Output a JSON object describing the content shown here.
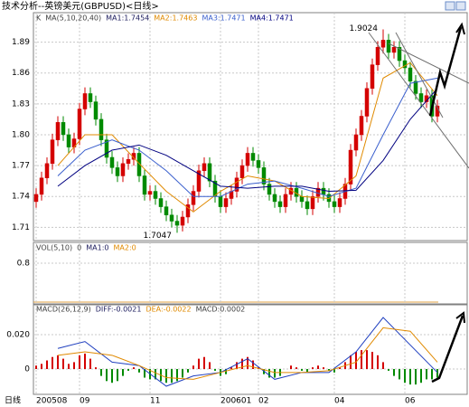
{
  "chart_data": {
    "type": "candlestick",
    "title": "技术分析--英镑美元(GBPUSD)<日线>",
    "period_label": "日线",
    "up_color": "#d40000",
    "down_color": "#008a00",
    "grid": true,
    "ylim": [
      1.698,
      1.916
    ],
    "yticks": [
      1.89,
      1.86,
      1.83,
      {
        "value": 1.8,
        "label": "1.80"
      },
      1.77,
      1.74,
      1.71
    ],
    "price_legend": [
      {
        "text": "K",
        "color": "#404040"
      },
      {
        "text": "MA(5,10,20,40)",
        "color": "#404040"
      },
      {
        "text": "MA1:1.7454",
        "color": "#202060"
      },
      {
        "text": "MA2:1.7463",
        "color": "#e08a00"
      },
      {
        "text": "MA3:1.7471",
        "color": "#3a5fcd"
      },
      {
        "text": "MA4:1.7471",
        "color": "#000080"
      }
    ],
    "candles": {
      "open": [
        1.735,
        1.742,
        1.758,
        1.772,
        1.795,
        1.812,
        1.8,
        1.788,
        1.796,
        1.825,
        1.84,
        1.832,
        1.815,
        1.795,
        1.778,
        1.768,
        1.76,
        1.772,
        1.776,
        1.782,
        1.76,
        1.742,
        1.745,
        1.738,
        1.73,
        1.722,
        1.716,
        1.712,
        1.72,
        1.732,
        1.745,
        1.765,
        1.772,
        1.755,
        1.74,
        1.73,
        1.738,
        1.745,
        1.758,
        1.77,
        1.782,
        1.775,
        1.768,
        1.752,
        1.742,
        1.735,
        1.73,
        1.742,
        1.748,
        1.74,
        1.735,
        1.728,
        1.74,
        1.748,
        1.742,
        1.735,
        1.73,
        1.738,
        1.752,
        1.785,
        1.8,
        1.818,
        1.845,
        1.868,
        1.885,
        1.892,
        1.88,
        1.885,
        1.872,
        1.865,
        1.852,
        1.84,
        1.832,
        1.838,
        1.818
      ],
      "high": [
        1.748,
        1.764,
        1.778,
        1.801,
        1.818,
        1.818,
        1.806,
        1.802,
        1.831,
        1.846,
        1.846,
        1.838,
        1.821,
        1.801,
        1.784,
        1.774,
        1.778,
        1.782,
        1.788,
        1.788,
        1.766,
        1.751,
        1.751,
        1.744,
        1.736,
        1.728,
        1.722,
        1.726,
        1.738,
        1.751,
        1.771,
        1.778,
        1.778,
        1.761,
        1.746,
        1.744,
        1.751,
        1.764,
        1.776,
        1.788,
        1.788,
        1.781,
        1.774,
        1.758,
        1.748,
        1.741,
        1.748,
        1.754,
        1.754,
        1.746,
        1.741,
        1.746,
        1.754,
        1.754,
        1.748,
        1.741,
        1.744,
        1.758,
        1.791,
        1.806,
        1.824,
        1.851,
        1.874,
        1.891,
        1.9024,
        1.898,
        1.891,
        1.891,
        1.878,
        1.871,
        1.858,
        1.846,
        1.844,
        1.844,
        1.834
      ],
      "low": [
        1.729,
        1.736,
        1.752,
        1.766,
        1.789,
        1.794,
        1.782,
        1.782,
        1.79,
        1.819,
        1.826,
        1.809,
        1.789,
        1.772,
        1.762,
        1.754,
        1.754,
        1.766,
        1.77,
        1.754,
        1.736,
        1.736,
        1.732,
        1.724,
        1.716,
        1.71,
        1.7047,
        1.706,
        1.714,
        1.726,
        1.739,
        1.759,
        1.749,
        1.734,
        1.724,
        1.724,
        1.732,
        1.739,
        1.752,
        1.764,
        1.769,
        1.762,
        1.746,
        1.736,
        1.729,
        1.724,
        1.724,
        1.736,
        1.734,
        1.729,
        1.722,
        1.722,
        1.734,
        1.736,
        1.729,
        1.724,
        1.724,
        1.732,
        1.746,
        1.779,
        1.794,
        1.812,
        1.839,
        1.862,
        1.879,
        1.874,
        1.874,
        1.866,
        1.859,
        1.846,
        1.834,
        1.826,
        1.826,
        1.812,
        1.812
      ],
      "close": [
        1.742,
        1.758,
        1.772,
        1.795,
        1.812,
        1.8,
        1.788,
        1.796,
        1.825,
        1.84,
        1.832,
        1.815,
        1.795,
        1.778,
        1.768,
        1.76,
        1.772,
        1.776,
        1.782,
        1.76,
        1.742,
        1.745,
        1.738,
        1.73,
        1.722,
        1.716,
        1.712,
        1.72,
        1.732,
        1.745,
        1.765,
        1.772,
        1.755,
        1.74,
        1.73,
        1.738,
        1.745,
        1.758,
        1.77,
        1.782,
        1.775,
        1.768,
        1.752,
        1.742,
        1.735,
        1.73,
        1.742,
        1.748,
        1.74,
        1.735,
        1.728,
        1.74,
        1.748,
        1.742,
        1.735,
        1.73,
        1.738,
        1.752,
        1.785,
        1.8,
        1.818,
        1.845,
        1.868,
        1.885,
        1.892,
        1.88,
        1.885,
        1.872,
        1.865,
        1.852,
        1.84,
        1.832,
        1.838,
        1.818,
        1.828
      ]
    },
    "ma": {
      "x": [
        4,
        9,
        14,
        19,
        24,
        29,
        34,
        39,
        44,
        49,
        54,
        59,
        64,
        69,
        74
      ],
      "series": [
        {
          "color": "#e08a00",
          "values": [
            1.77,
            1.8,
            1.8,
            1.772,
            1.745,
            1.725,
            1.745,
            1.76,
            1.755,
            1.74,
            1.738,
            1.76,
            1.855,
            1.87,
            1.838
          ]
        },
        {
          "color": "#3a5fcd",
          "values": [
            1.76,
            1.785,
            1.795,
            1.785,
            1.765,
            1.74,
            1.74,
            1.752,
            1.755,
            1.748,
            1.74,
            1.748,
            1.8,
            1.85,
            1.855
          ]
        },
        {
          "color": "#000080",
          "values": [
            1.75,
            1.77,
            1.785,
            1.79,
            1.78,
            1.765,
            1.75,
            1.748,
            1.75,
            1.75,
            1.745,
            1.746,
            1.775,
            1.815,
            1.845
          ]
        }
      ]
    },
    "volume": {
      "legend": [
        {
          "text": "VOL(5,10)",
          "color": "#404040"
        },
        {
          "text": "0",
          "color": "#404040"
        },
        {
          "text": "MA1:0",
          "color": "#202060"
        },
        {
          "text": "MA2:0",
          "color": "#e08a00"
        }
      ],
      "ylim": [
        0,
        1
      ],
      "yticks": [
        0.8
      ]
    },
    "macd": {
      "legend": [
        {
          "text": "MACD(26,12,9)",
          "color": "#404040"
        },
        {
          "text": "DIFF:-0.0021",
          "color": "#202060"
        },
        {
          "text": "DEA:-0.0022",
          "color": "#e08a00"
        },
        {
          "text": "MACD:0.0002",
          "color": "#404040"
        }
      ],
      "ylim": [
        -0.0142,
        0.0358
      ],
      "yticks": [
        {
          "value": 0.02,
          "label": "0.020"
        },
        0
      ],
      "hist": [
        0.002,
        0.003,
        0.005,
        0.007,
        0.008,
        0.006,
        0.003,
        0.004,
        0.008,
        0.009,
        0.006,
        0.001,
        -0.004,
        -0.007,
        -0.008,
        -0.007,
        -0.004,
        -0.001,
        0.001,
        -0.002,
        -0.005,
        -0.006,
        -0.006,
        -0.007,
        -0.008,
        -0.008,
        -0.007,
        -0.005,
        -0.002,
        0.002,
        0.006,
        0.007,
        0.004,
        -0.001,
        -0.004,
        -0.003,
        0.001,
        0.004,
        0.006,
        0.007,
        0.005,
        0.001,
        -0.003,
        -0.005,
        -0.005,
        -0.004,
        0,
        0.002,
        0.001,
        -0.001,
        -0.002,
        0.001,
        0.002,
        0.001,
        -0.001,
        -0.002,
        0.001,
        0.004,
        0.008,
        0.01,
        0.011,
        0.011,
        0.01,
        0.008,
        0.004,
        -0.001,
        -0.004,
        -0.006,
        -0.008,
        -0.009,
        -0.009,
        -0.008,
        -0.006,
        -0.006,
        -0.005
      ],
      "x": [
        4,
        9,
        14,
        19,
        24,
        29,
        34,
        39,
        44,
        49,
        54,
        59,
        64,
        69,
        74
      ],
      "series": [
        {
          "color": "#1f3fbf",
          "values": [
            0.012,
            0.016,
            0.004,
            0.002,
            -0.01,
            -0.004,
            -0.002,
            0.006,
            -0.006,
            -0.002,
            -0.002,
            0.01,
            0.03,
            0.014,
            -0.002
          ]
        },
        {
          "color": "#e08a00",
          "values": [
            0.008,
            0.01,
            0.008,
            0.002,
            -0.005,
            -0.006,
            -0.002,
            0.002,
            -0.002,
            -0.002,
            -0.001,
            0.004,
            0.024,
            0.022,
            0.004
          ]
        }
      ]
    },
    "xticks": [
      {
        "value": 0,
        "label": "200508"
      },
      {
        "value": 8,
        "label": "09"
      },
      {
        "value": 21,
        "label": "11"
      },
      {
        "value": 34,
        "label": "200601"
      },
      {
        "value": 41,
        "label": "02"
      },
      {
        "value": 55,
        "label": "04"
      },
      {
        "value": 68,
        "label": "06"
      }
    ]
  }
}
